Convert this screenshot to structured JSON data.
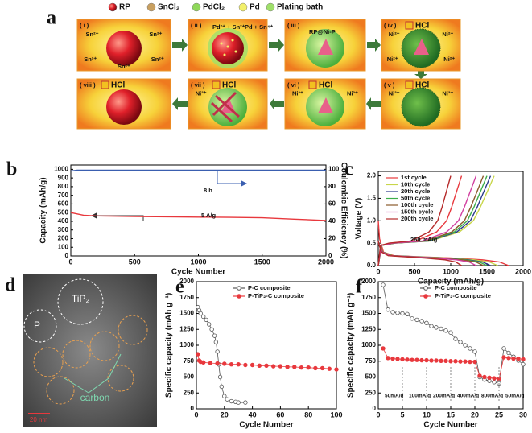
{
  "diagram": {
    "panel_label": "a",
    "legend": [
      "RP",
      "SnCl₂",
      "PdCl₂",
      "Pd",
      "Plating bath"
    ],
    "steps": [
      {
        "label": "( i )",
        "ions": [
          "Sn²⁺",
          "Sn²⁺",
          "Sn²⁺",
          "Sn²⁺",
          "Sn²⁺"
        ]
      },
      {
        "label": "( ii )",
        "reaction": [
          "Pd²⁺ + Sn²⁺",
          "Pd + Sn⁴⁺"
        ]
      },
      {
        "label": "( iii )",
        "note": "RP@Ni-P"
      },
      {
        "label": "( iv )",
        "reagent": "HCl",
        "ions": [
          "Ni²⁺",
          "Ni²⁺",
          "Ni²⁺",
          "Ni²⁺"
        ]
      },
      {
        "label": "( v )",
        "reagent": "HCl",
        "ions": [
          "Ni²⁺",
          "Ni²⁺"
        ]
      },
      {
        "label": "( vi )",
        "reagent": "HCl",
        "ions": [
          "Ni²⁺",
          "Ni²⁺"
        ]
      },
      {
        "label": "( vii )",
        "reagent": "HCl",
        "ions": [
          "Ni²⁺"
        ]
      },
      {
        "label": "( viii )",
        "reagent": "HCl"
      }
    ]
  },
  "image": {
    "panel_label": "d",
    "labels": [
      "TiP₂",
      "P",
      "carbon"
    ],
    "scale_bar": "20 nm"
  },
  "chart_data": [
    {
      "type": "line",
      "panel_label": "b",
      "xlabel": "Cycle Number",
      "ylabel": "Capacity (mAh/g)",
      "y2label": "Coulombic Efficiency (%)",
      "xlim": [
        0,
        2000
      ],
      "xticks": [
        0,
        500,
        1000,
        1500,
        2000
      ],
      "ylim": [
        0,
        1050
      ],
      "yticks": [
        0,
        100,
        200,
        300,
        400,
        500,
        600,
        700,
        800,
        900,
        1000
      ],
      "y2lim": [
        0,
        105
      ],
      "y2ticks": [
        0,
        20,
        40,
        60,
        80,
        100
      ],
      "annotations": [
        "8 h",
        "5 A/g"
      ],
      "x": [
        0,
        50,
        100,
        200,
        300,
        500,
        750,
        1000,
        1250,
        1500,
        1750,
        2000
      ],
      "series": [
        {
          "color": "#e8383d",
          "values": [
            500,
            485,
            470,
            462,
            460,
            455,
            452,
            448,
            445,
            440,
            425,
            410
          ]
        },
        {
          "color": "#3a5fb0",
          "axis": "y2",
          "values": [
            98,
            99,
            99,
            99,
            99,
            99,
            99,
            99,
            99,
            99,
            99,
            99
          ]
        }
      ]
    },
    {
      "type": "line",
      "panel_label": "c",
      "xlabel": "Capacity (mAh/g)",
      "ylabel": "Voltage (V)",
      "legend": "upper left",
      "xlim": [
        0,
        2000
      ],
      "xticks": [
        0,
        500,
        1000,
        1500,
        2000
      ],
      "ylim": [
        0,
        2.1
      ],
      "yticks": [
        {
          "value": 0,
          "label": "0.0"
        },
        0.5,
        {
          "value": 1,
          "label": "1.0"
        },
        1.5,
        {
          "value": 2,
          "label": "2.0"
        }
      ],
      "annotations": [
        "260 mA/g"
      ],
      "series": [
        {
          "name": "1st cycle",
          "color": "#e8383d",
          "x": [
            0,
            18,
            72,
            216,
            540,
            990,
            1440,
            1674,
            1800,
            null,
            0,
            35,
            173,
            518,
            805,
            943,
            1012,
            1081,
            1150
          ],
          "values": [
            1.0,
            0.6,
            0.3,
            0.22,
            0.2,
            0.17,
            0.13,
            0.08,
            0,
            null,
            0,
            0.45,
            0.5,
            0.55,
            0.75,
            1.0,
            1.3,
            1.65,
            2.0
          ]
        },
        {
          "name": "10th cycle",
          "color": "#c8d64a",
          "x": [
            0,
            17,
            66,
            198,
            495,
            908,
            1320,
            1535,
            1650,
            null,
            0,
            48,
            240,
            720,
            1120,
            1312,
            1408,
            1504,
            1600
          ],
          "values": [
            0.55,
            0.45,
            0.3,
            0.22,
            0.2,
            0.17,
            0.13,
            0.08,
            0,
            null,
            0,
            0.45,
            0.5,
            0.55,
            0.75,
            1.0,
            1.3,
            1.65,
            2.0
          ]
        },
        {
          "name": "20th cycle",
          "color": "#2b3a8c",
          "x": [
            0,
            16,
            62,
            186,
            465,
            853,
            1240,
            1442,
            1550,
            null,
            0,
            47,
            233,
            698,
            1085,
            1271,
            1364,
            1457,
            1550
          ],
          "values": [
            0.55,
            0.45,
            0.3,
            0.22,
            0.2,
            0.17,
            0.13,
            0.08,
            0,
            null,
            0,
            0.45,
            0.5,
            0.55,
            0.75,
            1.0,
            1.3,
            1.65,
            2.0
          ]
        },
        {
          "name": "50th cycle",
          "color": "#3cae4a",
          "x": [
            0,
            15,
            60,
            180,
            450,
            825,
            1200,
            1395,
            1500,
            null,
            0,
            45,
            225,
            675,
            1050,
            1230,
            1320,
            1410,
            1500
          ],
          "values": [
            0.55,
            0.45,
            0.3,
            0.22,
            0.2,
            0.17,
            0.13,
            0.08,
            0,
            null,
            0,
            0.45,
            0.5,
            0.55,
            0.75,
            1.0,
            1.3,
            1.65,
            2.0
          ]
        },
        {
          "name": "100th cycle",
          "color": "#8a5a2b",
          "x": [
            0,
            15,
            58,
            174,
            435,
            798,
            1160,
            1349,
            1450,
            null,
            0,
            44,
            218,
            653,
            1015,
            1189,
            1276,
            1363,
            1450
          ],
          "values": [
            0.55,
            0.45,
            0.3,
            0.22,
            0.2,
            0.17,
            0.13,
            0.08,
            0,
            null,
            0,
            0.45,
            0.5,
            0.55,
            0.75,
            1.0,
            1.3,
            1.65,
            2.0
          ]
        },
        {
          "name": "150th cycle",
          "color": "#d13fa0",
          "x": [
            0,
            14,
            54,
            162,
            405,
            743,
            1080,
            1256,
            1350,
            null,
            0,
            41,
            203,
            608,
            945,
            1107,
            1188,
            1269,
            1350
          ],
          "values": [
            0.55,
            0.45,
            0.3,
            0.22,
            0.2,
            0.17,
            0.13,
            0.08,
            0,
            null,
            0,
            0.45,
            0.5,
            0.55,
            0.75,
            1.0,
            1.3,
            1.65,
            2.0
          ]
        },
        {
          "name": "200th cycle",
          "color": "#b52a2a",
          "x": [
            0,
            12,
            46,
            138,
            345,
            633,
            920,
            1070,
            1150,
            null,
            0,
            30,
            150,
            450,
            700,
            820,
            880,
            940,
            1000
          ],
          "values": [
            0.55,
            0.45,
            0.3,
            0.22,
            0.2,
            0.17,
            0.13,
            0.08,
            0,
            null,
            0,
            0.45,
            0.5,
            0.55,
            0.75,
            1.0,
            1.3,
            1.65,
            2.0
          ]
        }
      ]
    },
    {
      "type": "line",
      "panel_label": "e",
      "xlabel": "Cycle Number",
      "ylabel": "Specific capacity (mAh g⁻¹)",
      "markers": true,
      "legend": "upper right",
      "xlim": [
        0,
        100
      ],
      "xticks": [
        0,
        20,
        40,
        60,
        80,
        100
      ],
      "ylim": [
        0,
        2000
      ],
      "yticks": [
        0,
        250,
        500,
        750,
        1000,
        1250,
        1500,
        1750,
        2000
      ],
      "series": [
        {
          "name": "P-C composite",
          "color": "#555555",
          "x": [
            1,
            2,
            3,
            5,
            7,
            9,
            11,
            13,
            14,
            15,
            16,
            17,
            18,
            20,
            22,
            25,
            28,
            30,
            35
          ],
          "values": [
            1600,
            1550,
            1500,
            1450,
            1400,
            1330,
            1250,
            1150,
            1050,
            900,
            700,
            500,
            350,
            200,
            150,
            120,
            110,
            100,
            100
          ]
        },
        {
          "name": "P-TiP₂-C composite",
          "color": "#e8383d",
          "x": [
            1,
            2,
            3,
            5,
            10,
            15,
            20,
            25,
            30,
            35,
            40,
            45,
            50,
            55,
            60,
            65,
            70,
            75,
            80,
            85,
            90,
            95,
            100
          ],
          "values": [
            860,
            760,
            740,
            730,
            720,
            715,
            710,
            700,
            700,
            690,
            690,
            680,
            680,
            670,
            670,
            660,
            660,
            650,
            650,
            640,
            640,
            630,
            620
          ]
        }
      ]
    },
    {
      "type": "line",
      "panel_label": "f",
      "xlabel": "Cycle Number",
      "ylabel": "Specific capacity (mAh g⁻¹)",
      "markers": true,
      "legend": "upper right",
      "xlim": [
        0,
        30
      ],
      "xticks": [
        0,
        5,
        10,
        15,
        20,
        25,
        30
      ],
      "ylim": [
        0,
        2000
      ],
      "yticks": [
        0,
        250,
        500,
        750,
        1000,
        1250,
        1500,
        1750,
        2000
      ],
      "annotations": [
        "50mA/g",
        "100mA/g",
        "200mA/g",
        "400mA/g",
        "800mA/g",
        "50mA/g"
      ],
      "x": [
        1,
        2,
        3,
        4,
        5,
        6,
        7,
        8,
        9,
        10,
        11,
        12,
        13,
        14,
        15,
        16,
        17,
        18,
        19,
        20,
        21,
        22,
        23,
        24,
        25,
        26,
        27,
        28,
        29,
        30
      ],
      "series": [
        {
          "name": "P-C composite",
          "color": "#555555",
          "values": [
            1950,
            1560,
            1520,
            1510,
            1500,
            1490,
            1420,
            1400,
            1380,
            1350,
            1300,
            1280,
            1260,
            1230,
            1200,
            1100,
            1050,
            1000,
            950,
            900,
            500,
            460,
            440,
            420,
            400,
            950,
            880,
            820,
            760,
            700
          ]
        },
        {
          "name": "P-TiP₂-C composite",
          "color": "#e8383d",
          "values": [
            950,
            800,
            790,
            785,
            780,
            775,
            770,
            770,
            765,
            765,
            760,
            760,
            755,
            755,
            750,
            750,
            745,
            745,
            740,
            740,
            520,
            500,
            490,
            480,
            470,
            810,
            800,
            790,
            790,
            780
          ]
        }
      ]
    }
  ]
}
